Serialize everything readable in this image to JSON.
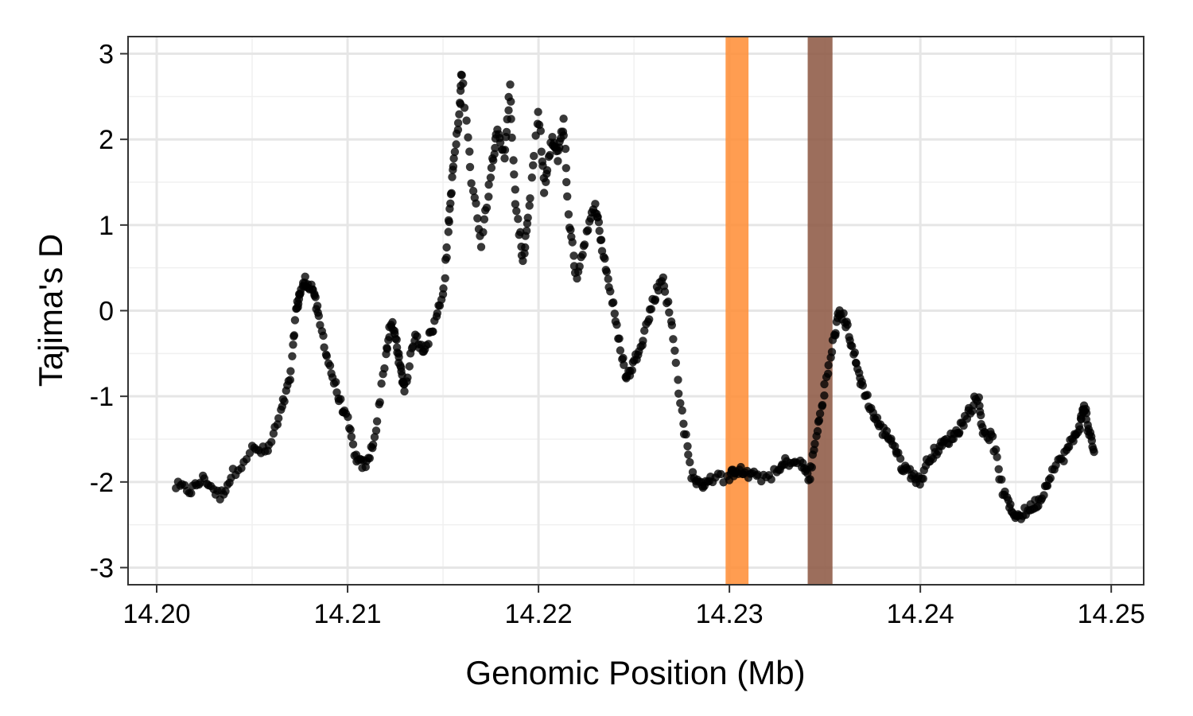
{
  "chart_data": {
    "type": "scatter",
    "title": "",
    "xlabel": "Genomic Position (Mb)",
    "ylabel": "Tajima's D",
    "xlim": [
      14.1985,
      14.2517
    ],
    "ylim": [
      -3.2,
      3.2
    ],
    "x_ticks": [
      14.2,
      14.21,
      14.22,
      14.23,
      14.24,
      14.25
    ],
    "x_tick_labels": [
      "14.20",
      "14.21",
      "14.22",
      "14.23",
      "14.24",
      "14.25"
    ],
    "y_ticks": [
      -3,
      -2,
      -1,
      0,
      1,
      2,
      3
    ],
    "y_tick_labels": [
      "-3",
      "-2",
      "-1",
      "0",
      "1",
      "2",
      "3"
    ],
    "grid": true,
    "point_color": "#000000",
    "highlight_regions": [
      {
        "x_start": 14.2298,
        "x_end": 14.231,
        "color": "#FF8C33"
      },
      {
        "x_start": 14.2341,
        "x_end": 14.2354,
        "color": "#8B5540"
      }
    ],
    "profile": [
      [
        14.201,
        -2.05
      ],
      [
        14.2018,
        -2.1
      ],
      [
        14.2025,
        -1.95
      ],
      [
        14.2033,
        -2.18
      ],
      [
        14.204,
        -1.9
      ],
      [
        14.205,
        -1.62
      ],
      [
        14.2058,
        -1.65
      ],
      [
        14.2065,
        -1.2
      ],
      [
        14.207,
        -0.8
      ],
      [
        14.2073,
        0.0
      ],
      [
        14.2075,
        0.2
      ],
      [
        14.2078,
        0.35
      ],
      [
        14.2082,
        0.25
      ],
      [
        14.2085,
        -0.1
      ],
      [
        14.209,
        -0.6
      ],
      [
        14.2095,
        -1.0
      ],
      [
        14.21,
        -1.3
      ],
      [
        14.2105,
        -1.78
      ],
      [
        14.211,
        -1.8
      ],
      [
        14.2115,
        -1.4
      ],
      [
        14.212,
        -0.5
      ],
      [
        14.2123,
        -0.15
      ],
      [
        14.2126,
        -0.4
      ],
      [
        14.2128,
        -0.75
      ],
      [
        14.213,
        -0.9
      ],
      [
        14.2135,
        -0.3
      ],
      [
        14.214,
        -0.45
      ],
      [
        14.2145,
        -0.2
      ],
      [
        14.215,
        0.2
      ],
      [
        14.2153,
        1.0
      ],
      [
        14.2155,
        1.6
      ],
      [
        14.2158,
        2.2
      ],
      [
        14.216,
        2.8
      ],
      [
        14.2165,
        1.5
      ],
      [
        14.217,
        0.8
      ],
      [
        14.2175,
        1.6
      ],
      [
        14.2178,
        2.1
      ],
      [
        14.2182,
        1.8
      ],
      [
        14.2185,
        2.6
      ],
      [
        14.2188,
        1.2
      ],
      [
        14.2192,
        0.6
      ],
      [
        14.2195,
        1.2
      ],
      [
        14.22,
        2.3
      ],
      [
        14.2203,
        1.4
      ],
      [
        14.2207,
        2.0
      ],
      [
        14.221,
        1.8
      ],
      [
        14.2213,
        2.2
      ],
      [
        14.2216,
        1.0
      ],
      [
        14.222,
        0.4
      ],
      [
        14.2225,
        0.9
      ],
      [
        14.223,
        1.25
      ],
      [
        14.2233,
        0.8
      ],
      [
        14.2237,
        0.3
      ],
      [
        14.2242,
        -0.3
      ],
      [
        14.2246,
        -0.8
      ],
      [
        14.225,
        -0.6
      ],
      [
        14.2255,
        -0.3
      ],
      [
        14.226,
        0.1
      ],
      [
        14.2265,
        0.4
      ],
      [
        14.227,
        -0.2
      ],
      [
        14.2275,
        -1.2
      ],
      [
        14.228,
        -1.9
      ],
      [
        14.2285,
        -2.05
      ],
      [
        14.229,
        -1.95
      ],
      [
        14.23,
        -1.95
      ],
      [
        14.2303,
        -1.85
      ],
      [
        14.2308,
        -1.9
      ],
      [
        14.2315,
        -1.95
      ],
      [
        14.2325,
        -1.9
      ],
      [
        14.233,
        -1.75
      ],
      [
        14.2338,
        -1.8
      ],
      [
        14.2342,
        -1.95
      ],
      [
        14.2346,
        -1.4
      ],
      [
        14.235,
        -0.9
      ],
      [
        14.2355,
        -0.3
      ],
      [
        14.2358,
        0.0
      ],
      [
        14.2362,
        -0.2
      ],
      [
        14.2366,
        -0.6
      ],
      [
        14.237,
        -0.9
      ],
      [
        14.2375,
        -1.2
      ],
      [
        14.238,
        -1.4
      ],
      [
        14.2385,
        -1.5
      ],
      [
        14.239,
        -1.8
      ],
      [
        14.2395,
        -1.9
      ],
      [
        14.24,
        -2.0
      ],
      [
        14.2405,
        -1.7
      ],
      [
        14.241,
        -1.6
      ],
      [
        14.2415,
        -1.5
      ],
      [
        14.242,
        -1.4
      ],
      [
        14.2425,
        -1.2
      ],
      [
        14.243,
        -1.0
      ],
      [
        14.2433,
        -1.4
      ],
      [
        14.2438,
        -1.5
      ],
      [
        14.2443,
        -2.1
      ],
      [
        14.2448,
        -2.35
      ],
      [
        14.2452,
        -2.4
      ],
      [
        14.2458,
        -2.3
      ],
      [
        14.2463,
        -2.2
      ],
      [
        14.2468,
        -1.9
      ],
      [
        14.2475,
        -1.7
      ],
      [
        14.248,
        -1.5
      ],
      [
        14.2484,
        -1.3
      ],
      [
        14.2486,
        -1.1
      ],
      [
        14.2488,
        -1.4
      ],
      [
        14.2491,
        -1.65
      ]
    ]
  }
}
